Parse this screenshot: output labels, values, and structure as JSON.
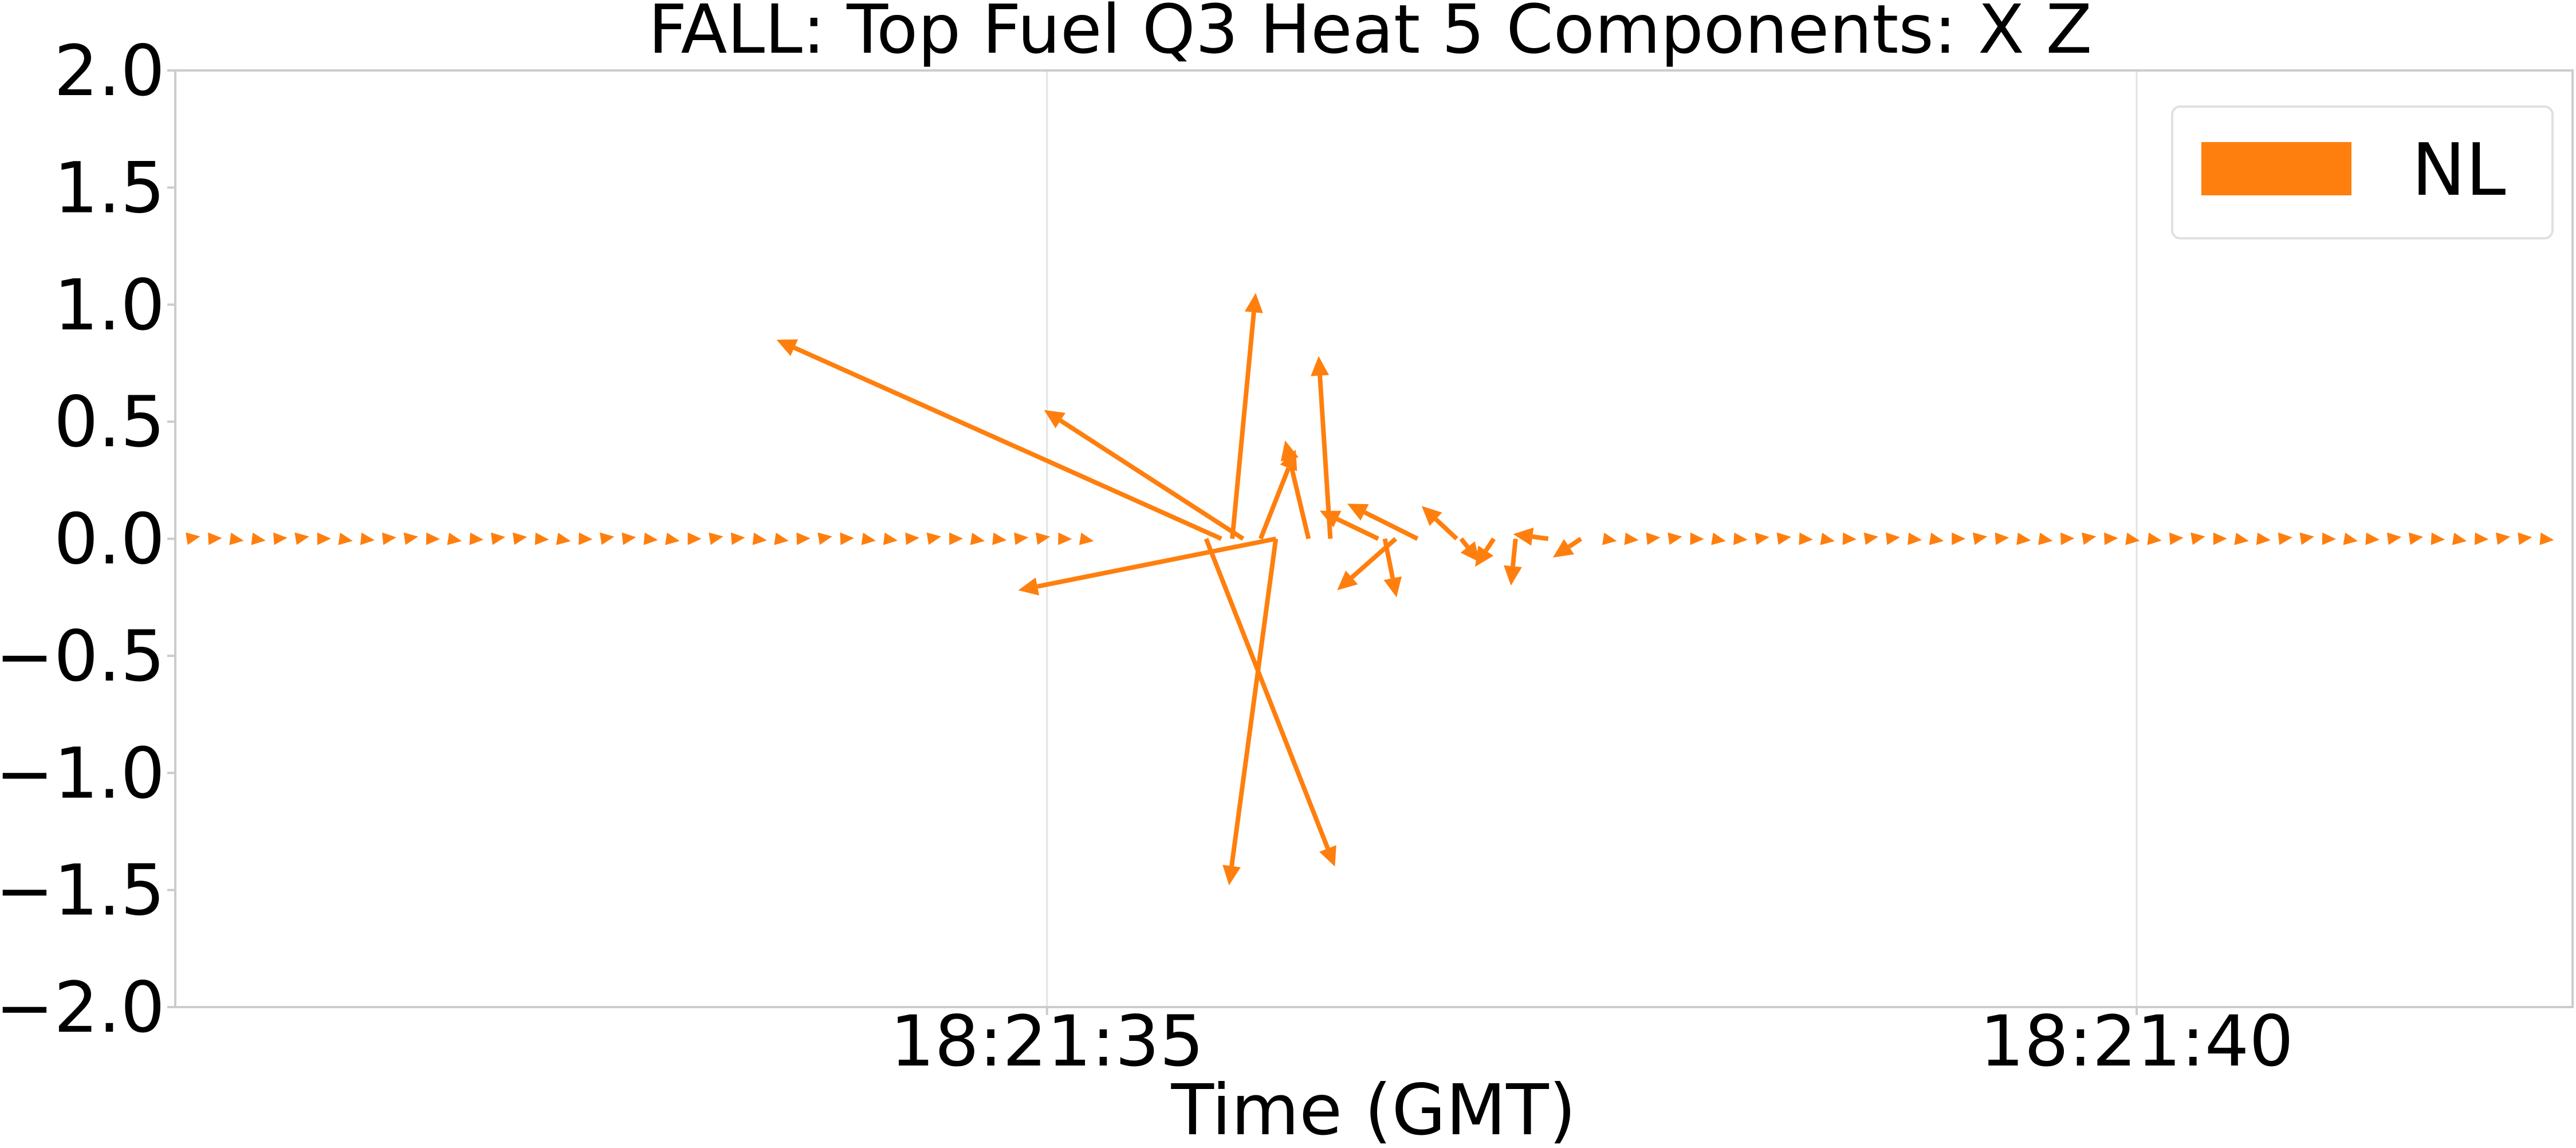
{
  "chart_data": {
    "type": "quiver",
    "title": "FALL: Top Fuel Q3 Heat 5 Components: X Z",
    "xlabel": "Time (GMT)",
    "ylabel": "",
    "ylim": [
      -2.0,
      2.0
    ],
    "y_ticks": [
      "2.0",
      "1.5",
      "1.0",
      "0.5",
      "0.0",
      "−0.5",
      "−1.0",
      "−1.5",
      "−2.0"
    ],
    "y_tick_values": [
      2.0,
      1.5,
      1.0,
      0.5,
      0.0,
      -0.5,
      -1.0,
      -1.5,
      -2.0
    ],
    "xlim": [
      31.0,
      42.0
    ],
    "x_ticks": [
      "18:21:35",
      "18:21:40"
    ],
    "x_tick_values": [
      35.0,
      40.0
    ],
    "grid": true,
    "legend": {
      "placement": "top-right",
      "entries": [
        {
          "name": "NL",
          "color": "#ff7f0e"
        }
      ]
    },
    "series_color": "#ff7f0e",
    "vectors": [
      {
        "t": 35.8,
        "x": -1.9,
        "z": 0.85
      },
      {
        "t": 35.85,
        "x": 0.1,
        "z": 1.05
      },
      {
        "t": 35.9,
        "x": -0.85,
        "z": 0.55
      },
      {
        "t": 35.98,
        "x": 0.15,
        "z": 0.38
      },
      {
        "t": 35.73,
        "x": 0.55,
        "z": -1.4
      },
      {
        "t": 36.05,
        "x": -0.2,
        "z": -1.48
      },
      {
        "t": 36.05,
        "x": -1.1,
        "z": -0.22
      },
      {
        "t": 36.2,
        "x": -0.1,
        "z": 0.42
      },
      {
        "t": 36.3,
        "x": -0.05,
        "z": 0.78
      },
      {
        "t": 36.52,
        "x": -0.25,
        "z": 0.12
      },
      {
        "t": 36.55,
        "x": 0.05,
        "z": -0.25
      },
      {
        "t": 36.6,
        "x": -0.25,
        "z": -0.22
      },
      {
        "t": 36.7,
        "x": -0.3,
        "z": 0.15
      },
      {
        "t": 36.88,
        "x": -0.15,
        "z": 0.14
      },
      {
        "t": 36.9,
        "x": 0.08,
        "z": -0.1
      },
      {
        "t": 37.05,
        "x": -0.08,
        "z": -0.12
      },
      {
        "t": 37.15,
        "x": -0.02,
        "z": -0.2
      },
      {
        "t": 37.3,
        "x": -0.15,
        "z": 0.02
      },
      {
        "t": 37.45,
        "x": -0.12,
        "z": -0.08
      }
    ],
    "background_flow": {
      "t_ranges": [
        [
          31.05,
          35.2
        ],
        [
          37.55,
          41.9
        ]
      ],
      "x": 0.06,
      "z": 0.0
    }
  }
}
